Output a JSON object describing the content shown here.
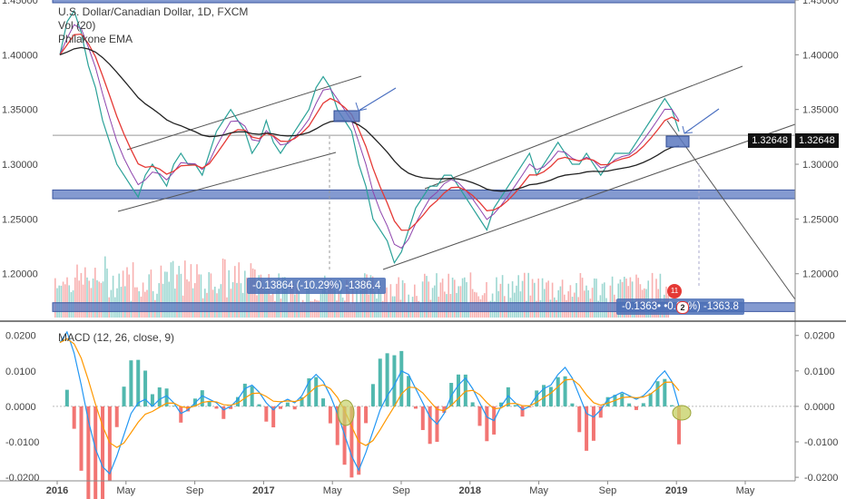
{
  "header": {
    "symbol_line": "U.S. Dollar/Canadian Dollar, 1D, FXCM",
    "volume_indicator": "Vol (20)",
    "ema_indicator": "Philakone EMA",
    "macd_indicator": "MACD (12, 26, close, 9)"
  },
  "last_price_label": "1.32648",
  "measurements": [
    {
      "text": "-0.13864 (-10.29%) -1386.4"
    },
    {
      "text": "-0.1363• •0.29%) -1363.8"
    }
  ],
  "badges": {
    "count": "11",
    "number": "2"
  },
  "colors": {
    "up": "#26a69a",
    "down": "#ef5350",
    "ema_short": "#e53935",
    "ema_long": "#222222",
    "zone": "#5b78c0",
    "macd_line": "#2196f3",
    "signal_line": "#ff9800",
    "highlight_circle": "#c8d26a"
  },
  "chart_data": [
    {
      "type": "line",
      "title": "U.S. Dollar/Canadian Dollar, 1D, FXCM",
      "ylim": [
        1.16,
        1.45
      ],
      "y_ticks": [
        "1.45000",
        "1.40000",
        "1.35000",
        "1.30000",
        "1.25000",
        "1.20000"
      ],
      "x_ticks": [
        "2016",
        "May",
        "Sep",
        "2017",
        "May",
        "Sep",
        "2018",
        "May",
        "Sep",
        "2019",
        "May"
      ],
      "series": [
        {
          "values": [
            1.4,
            1.43,
            1.44,
            1.42,
            1.39,
            1.37,
            1.34,
            1.32,
            1.3,
            1.29,
            1.28,
            1.27,
            1.29,
            1.3,
            1.29,
            1.28,
            1.3,
            1.31,
            1.3,
            1.3,
            1.29,
            1.31,
            1.33,
            1.34,
            1.35,
            1.34,
            1.33,
            1.31,
            1.32,
            1.34,
            1.32,
            1.31,
            1.32,
            1.33,
            1.34,
            1.35,
            1.37,
            1.38,
            1.37,
            1.35,
            1.34,
            1.33,
            1.3,
            1.28,
            1.25,
            1.24,
            1.23,
            1.21,
            1.22,
            1.24,
            1.26,
            1.27,
            1.28,
            1.28,
            1.29,
            1.29,
            1.28,
            1.27,
            1.26,
            1.25,
            1.24,
            1.26,
            1.27,
            1.28,
            1.29,
            1.3,
            1.31,
            1.29,
            1.3,
            1.31,
            1.32,
            1.31,
            1.3,
            1.3,
            1.31,
            1.3,
            1.29,
            1.3,
            1.31,
            1.31,
            1.31,
            1.32,
            1.33,
            1.34,
            1.35,
            1.36,
            1.35,
            1.33
          ]
        }
      ],
      "annotations": [
        "Philakone EMA",
        "Vol (20)"
      ]
    },
    {
      "type": "line",
      "title": "MACD (12, 26, close, 9)",
      "ylim": [
        -0.021,
        0.023
      ],
      "y_ticks": [
        "0.0200",
        "0.0100",
        "0.0000",
        "-0.0100",
        "-0.0200"
      ],
      "series": [
        {
          "values": [
            0.018,
            0.021,
            0.015,
            0.006,
            -0.004,
            -0.012,
            -0.017,
            -0.019,
            -0.014,
            -0.008,
            -0.002,
            0.001,
            0.002,
            0.0,
            0.002,
            0.003,
            0.001,
            -0.002,
            -0.001,
            0.001,
            0.003,
            0.002,
            0.001,
            -0.001,
            0.0,
            0.002,
            0.005,
            0.006,
            0.004,
            0.001,
            -0.001,
            0.001,
            0.002,
            0.001,
            0.003,
            0.007,
            0.009,
            0.007,
            0.003,
            -0.002,
            -0.008,
            -0.014,
            -0.018,
            -0.013,
            -0.007,
            -0.001,
            0.003,
            0.006,
            0.01,
            0.009,
            0.005,
            0.001,
            -0.003,
            -0.005,
            -0.002,
            0.003,
            0.006,
            0.008,
            0.005,
            0.001,
            -0.003,
            -0.004,
            0.0,
            0.003,
            0.001,
            -0.001,
            0.0,
            0.003,
            0.005,
            0.006,
            0.009,
            0.011,
            0.008,
            0.003,
            -0.002,
            -0.003,
            -0.001,
            0.002,
            0.003,
            0.004,
            0.003,
            0.002,
            0.003,
            0.005,
            0.008,
            0.01,
            0.007,
            0.0
          ]
        }
      ]
    }
  ]
}
